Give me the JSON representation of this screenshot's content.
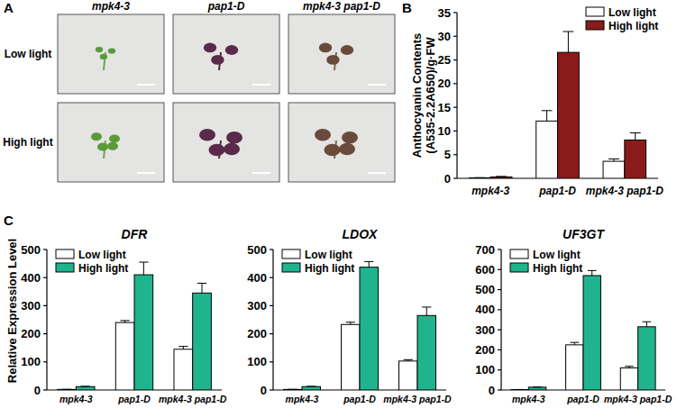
{
  "panel_labels": [
    "A",
    "B",
    "C"
  ],
  "photo_grid": {
    "columns": [
      "mpk4-3",
      "pap1-D",
      "mpk4-3 pap1-D"
    ],
    "rows": [
      "Low light",
      "High light"
    ]
  },
  "chart_data": [
    {
      "type": "bar",
      "ylabel": "Anthocyanin Contents\n(A535-2.2A650)/g·FW",
      "categories": [
        "mpk4-3",
        "pap1-D",
        "mpk4-3 pap1-D"
      ],
      "series": [
        {
          "name": "Low light",
          "color": "#ffffff",
          "values": [
            0.1,
            12.1,
            3.6
          ],
          "errors": [
            0.05,
            2.2,
            0.5
          ]
        },
        {
          "name": "High light",
          "color": "#8b1a1a",
          "values": [
            0.3,
            26.6,
            8.1
          ],
          "errors": [
            0.1,
            4.4,
            1.5
          ]
        }
      ],
      "ylim": [
        0,
        35
      ],
      "yticks": [
        0,
        5,
        10,
        15,
        20,
        25,
        30,
        35
      ],
      "legend": "upper right"
    },
    {
      "type": "bar",
      "title": "DFR",
      "ylabel": "Relative Expression Level",
      "categories": [
        "mpk4-3",
        "pap1-D",
        "mpk4-3 pap1-D"
      ],
      "series": [
        {
          "name": "Low light",
          "color": "#ffffff",
          "values": [
            2,
            240,
            145
          ],
          "errors": [
            0.5,
            7,
            10
          ]
        },
        {
          "name": "High light",
          "color": "#20b48e",
          "values": [
            12,
            410,
            345
          ],
          "errors": [
            1,
            45,
            35
          ]
        }
      ],
      "ylim": [
        0,
        500
      ],
      "yticks": [
        0,
        100,
        200,
        300,
        400,
        500
      ],
      "legend": "upper left"
    },
    {
      "type": "bar",
      "title": "LDOX",
      "categories": [
        "mpk4-3",
        "pap1-D",
        "mpk4-3 pap1-D"
      ],
      "series": [
        {
          "name": "Low light",
          "color": "#ffffff",
          "values": [
            2,
            233,
            103
          ],
          "errors": [
            0.5,
            8,
            5
          ]
        },
        {
          "name": "High light",
          "color": "#20b48e",
          "values": [
            12,
            437,
            265
          ],
          "errors": [
            1,
            20,
            30
          ]
        }
      ],
      "ylim": [
        0,
        500
      ],
      "yticks": [
        0,
        100,
        200,
        300,
        400,
        500
      ],
      "legend": "upper left"
    },
    {
      "type": "bar",
      "title": "UF3GT",
      "categories": [
        "mpk4-3",
        "pap1-D",
        "mpk4-3 pap1-D"
      ],
      "series": [
        {
          "name": "Low light",
          "color": "#ffffff",
          "values": [
            2,
            225,
            110
          ],
          "errors": [
            0.5,
            12,
            8
          ]
        },
        {
          "name": "High light",
          "color": "#20b48e",
          "values": [
            14,
            570,
            315
          ],
          "errors": [
            1,
            25,
            25
          ]
        }
      ],
      "ylim": [
        0,
        700
      ],
      "yticks": [
        0,
        100,
        200,
        300,
        400,
        500,
        600,
        700
      ],
      "legend": "upper left"
    }
  ]
}
